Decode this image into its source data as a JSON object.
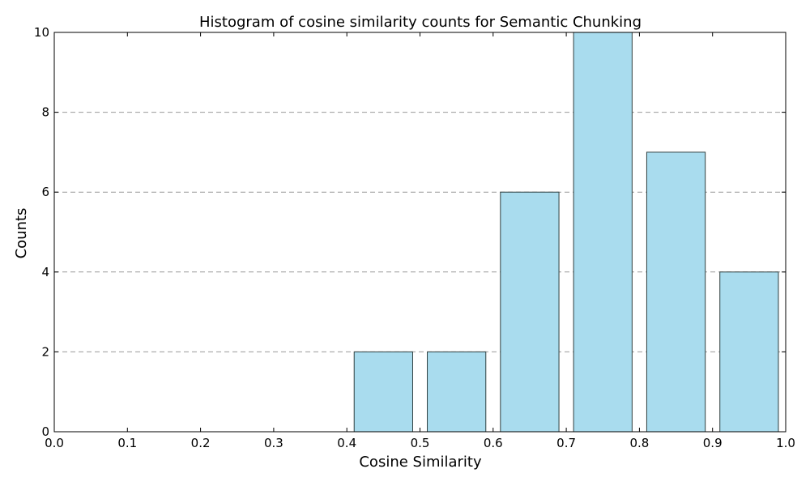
{
  "chart_data": {
    "type": "bar",
    "title": "Histogram of cosine similarity counts for Semantic Chunking",
    "xlabel": "Cosine Similarity",
    "ylabel": "Counts",
    "xlim": [
      0.0,
      1.0
    ],
    "ylim": [
      0,
      10
    ],
    "x_ticks": [
      "0.0",
      "0.1",
      "0.2",
      "0.3",
      "0.4",
      "0.5",
      "0.6",
      "0.7",
      "0.8",
      "0.9",
      "1.0"
    ],
    "y_ticks": [
      "0",
      "2",
      "4",
      "6",
      "8",
      "10"
    ],
    "grid": "horizontal dashed",
    "bins": [
      {
        "start": 0.0,
        "end": 0.1,
        "count": 0
      },
      {
        "start": 0.1,
        "end": 0.2,
        "count": 0
      },
      {
        "start": 0.2,
        "end": 0.3,
        "count": 0
      },
      {
        "start": 0.3,
        "end": 0.4,
        "count": 0
      },
      {
        "start": 0.4,
        "end": 0.5,
        "count": 2
      },
      {
        "start": 0.5,
        "end": 0.6,
        "count": 2
      },
      {
        "start": 0.6,
        "end": 0.7,
        "count": 6
      },
      {
        "start": 0.7,
        "end": 0.8,
        "count": 10
      },
      {
        "start": 0.8,
        "end": 0.9,
        "count": 7
      },
      {
        "start": 0.9,
        "end": 1.0,
        "count": 4
      }
    ],
    "bar_color": "#a9dcee",
    "bar_edge_color": "#2f3f3f",
    "grid_color": "#999999"
  }
}
